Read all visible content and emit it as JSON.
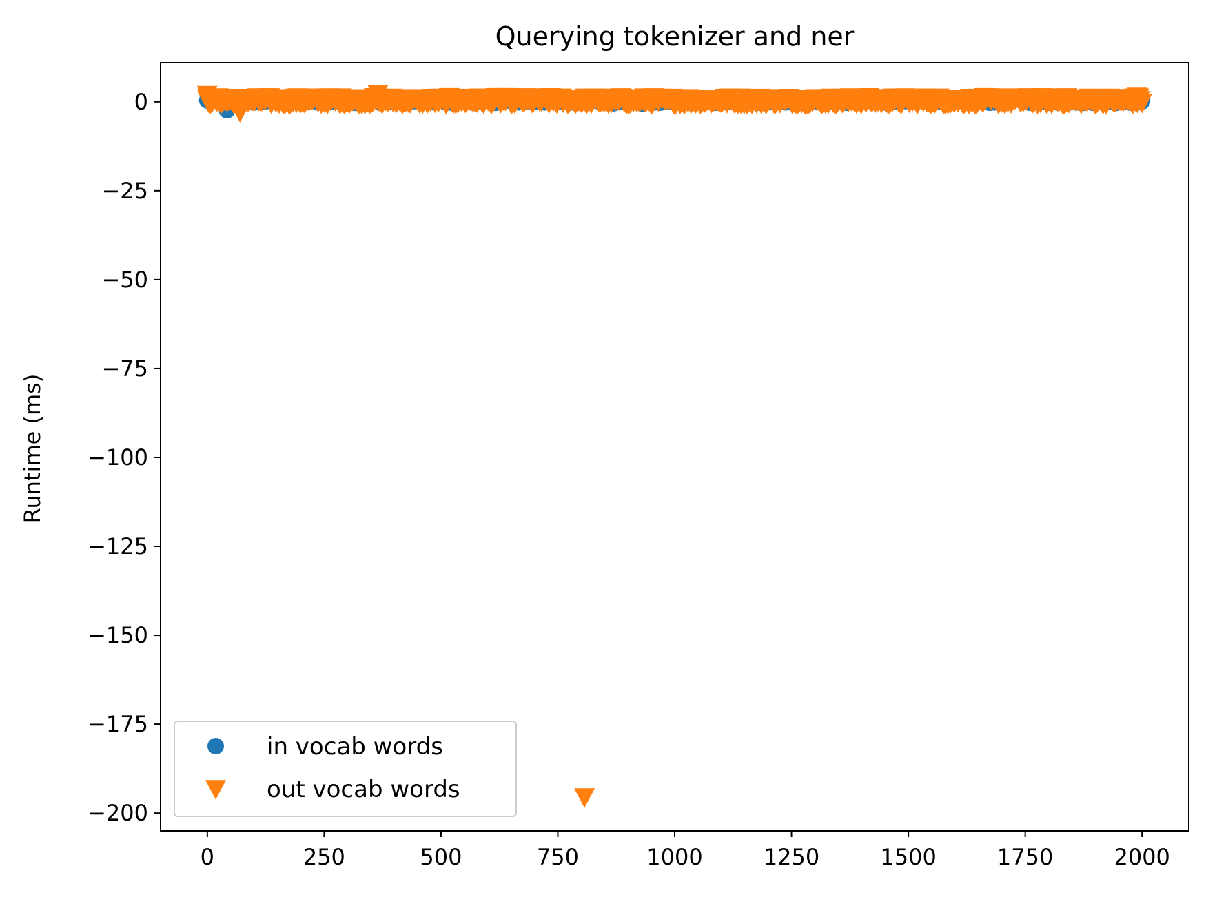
{
  "chart_data": {
    "type": "scatter",
    "title": "Querying tokenizer and ner",
    "xlabel": "",
    "ylabel": "Runtime (ms)",
    "xlim": [
      -100,
      2100
    ],
    "ylim": [
      -205,
      11
    ],
    "xticks": [
      0,
      250,
      500,
      750,
      1000,
      1250,
      1500,
      1750,
      2000
    ],
    "xtick_labels": [
      "0",
      "250",
      "500",
      "750",
      "1000",
      "1250",
      "1500",
      "1750",
      "2000"
    ],
    "yticks": [
      0,
      -25,
      -50,
      -75,
      -100,
      -125,
      -150,
      -175,
      -200
    ],
    "ytick_labels": [
      "0",
      "−25",
      "−50",
      "−75",
      "−100",
      "−125",
      "−150",
      "−175",
      "−200"
    ],
    "grid": false,
    "legend_position": "lower-left",
    "series": [
      {
        "name": "in vocab words",
        "marker": "circle",
        "color": "#1f77b4",
        "band": {
          "x_start": 0,
          "x_end": 2000,
          "count": 400,
          "y_mean": 0.3,
          "y_spread": 0.6
        },
        "points": [
          {
            "x": 0,
            "y": 0.4
          },
          {
            "x": 42,
            "y": -2.4
          },
          {
            "x": 380,
            "y": 1.0
          },
          {
            "x": 870,
            "y": -0.4
          },
          {
            "x": 930,
            "y": -0.5
          },
          {
            "x": 2000,
            "y": 0.1
          }
        ]
      },
      {
        "name": "out vocab words",
        "marker": "triangle-down",
        "color": "#ff7f0e",
        "band": {
          "x_start": 0,
          "x_end": 2000,
          "count": 600,
          "y_mean": 0.4,
          "y_spread": 1.0
        },
        "points": [
          {
            "x": 0,
            "y": 2.0
          },
          {
            "x": 70,
            "y": -2.8
          },
          {
            "x": 365,
            "y": 2.2
          },
          {
            "x": 750,
            "y": 0.8
          },
          {
            "x": 1990,
            "y": 1.5
          },
          {
            "x": 807,
            "y": -195.5
          }
        ]
      }
    ]
  }
}
